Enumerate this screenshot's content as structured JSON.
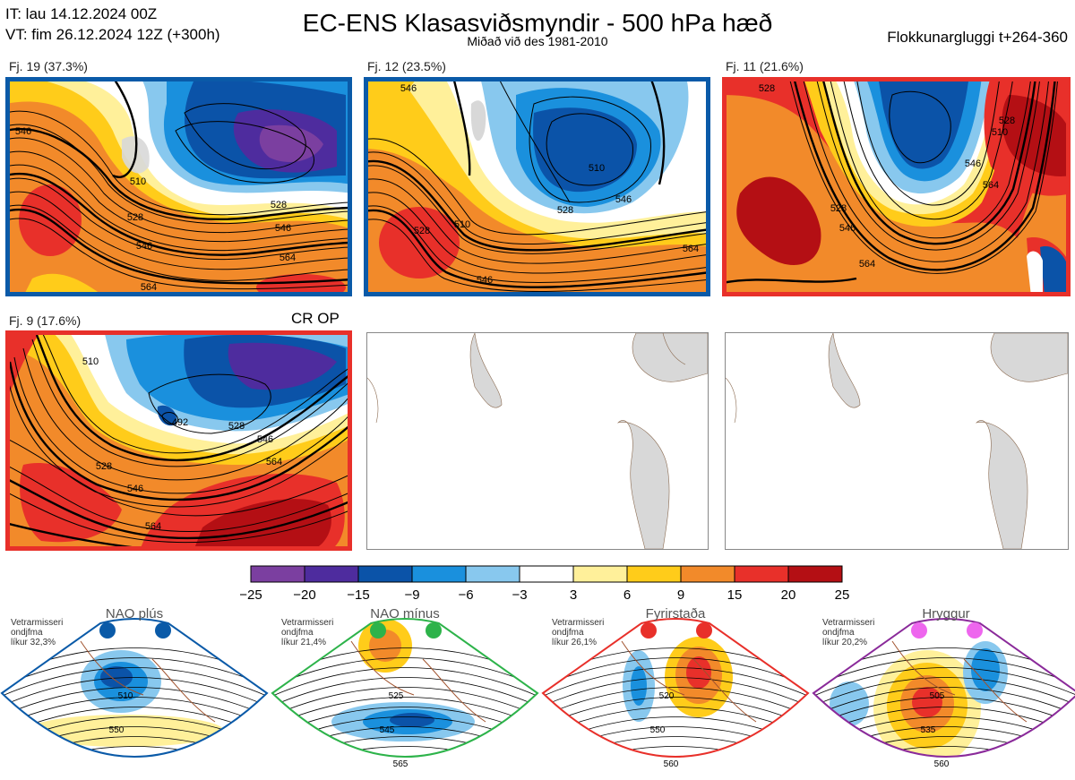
{
  "header": {
    "it_line": "IT: lau 14.12.2024 00Z",
    "vt_line": "VT: fim 26.12.2024 12Z  (+300h)",
    "title": "EC-ENS Klasasviðsmyndir - 500 hPa hæð",
    "subtitle": "Miðað við des 1981-2010",
    "window": "Flokkunargluggi t+264-360"
  },
  "panels": [
    {
      "label": "Fj. 19 (37.3%)",
      "frame_color": "#0a5aa8",
      "extra": ""
    },
    {
      "label": "Fj. 12 (23.5%)",
      "frame_color": "#0a5aa8",
      "extra": ""
    },
    {
      "label": "Fj. 11 (21.6%)",
      "frame_color": "#e8302a",
      "extra": ""
    },
    {
      "label": "Fj. 9 (17.6%)",
      "frame_color": "#e8302a",
      "extra": "CR OP"
    }
  ],
  "contour_labels": {
    "p1": [
      "510",
      "528",
      "528",
      "546",
      "546",
      "564",
      "564",
      "546"
    ],
    "p2": [
      "510",
      "528",
      "546",
      "546",
      "564",
      "510",
      "528",
      "546"
    ],
    "p3": [
      "528",
      "528",
      "546",
      "564",
      "510",
      "528",
      "546",
      "564"
    ],
    "p4": [
      "510",
      "528",
      "546",
      "564",
      "546",
      "564",
      "528",
      "492"
    ]
  },
  "colorbar": {
    "ticks": [
      "−25",
      "−20",
      "−15",
      "−9",
      "−6",
      "−3",
      "3",
      "6",
      "9",
      "15",
      "20",
      "25"
    ],
    "colors": [
      "#7b3fa0",
      "#4e2c9e",
      "#0b53a8",
      "#1a90dd",
      "#88c8ee",
      "#ffffff",
      "#fff09a",
      "#ffcc1a",
      "#f28a2a",
      "#e8302a",
      "#b40f14"
    ]
  },
  "regimes": [
    {
      "name": "NAO plús",
      "note": [
        "Vetrarmisseri",
        "ondjfma",
        "líkur 32,3%"
      ],
      "dot_color": "#0a5aa8",
      "frame_color": "#0a5aa8",
      "labels": [
        "510",
        "550"
      ]
    },
    {
      "name": "NAO mínus",
      "note": [
        "Vetrarmisseri",
        "ondjfma",
        "líkur 21,4%"
      ],
      "dot_color": "#2db34a",
      "frame_color": "#2db34a",
      "labels": [
        "525",
        "545",
        "565"
      ]
    },
    {
      "name": "Fyrirstaða",
      "note": [
        "Vetrarmisseri",
        "ondjfma",
        "líkur 26,1%"
      ],
      "dot_color": "#e8302a",
      "frame_color": "#e8302a",
      "labels": [
        "520",
        "550",
        "560"
      ]
    },
    {
      "name": "Hryggur",
      "note": [
        "Vetrarmisseri",
        "ondjfma",
        "líkur 20,2%"
      ],
      "dot_color": "#ee66ee",
      "frame_color": "#8a2a9a",
      "labels": [
        "505",
        "535",
        "560"
      ]
    }
  ]
}
